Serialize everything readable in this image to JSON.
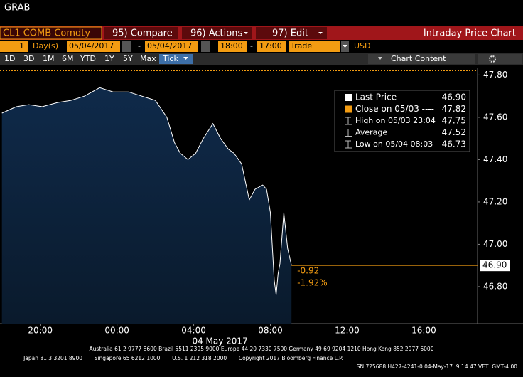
{
  "ui": {
    "title": "GRAB",
    "ticker": "CL1 COMB Comdty",
    "menu": [
      "95) Compare",
      "96) Actions",
      "97) Edit"
    ],
    "page_title": "Intraday Price Chart",
    "range": {
      "count": "1",
      "unit": "Day(s)",
      "start": "05/04/2017",
      "sep": "-",
      "end": "05/04/2017",
      "time_start": "18:00",
      "time_end": "17:00",
      "field": "Trade",
      "currency": "USD"
    },
    "periods": [
      "1D",
      "3D",
      "1M",
      "6M",
      "YTD",
      "1Y",
      "5Y",
      "Max",
      "Tick"
    ],
    "chart_content": "Chart Content",
    "footer": [
      "Australia 61 2 9777 8600 Brazil 5511 2395 9000 Europe 44 20 7330 7500 Germany 49 69 9204 1210 Hong Kong 852 2977 6000",
      "Japan 81 3 3201 8900       Singapore 65 6212 1000       U.S. 1 212 318 2000       Copyright 2017 Bloomberg Finance L.P.",
      "SN 725688 H427-4241-0 04-May-17  9:14:47 VET  GMT-4:00"
    ]
  },
  "chart_data": {
    "type": "area",
    "x": [
      0.0,
      0.75,
      1.4,
      2.1,
      2.9,
      3.6,
      4.3,
      5.1,
      5.8,
      6.6,
      7.3,
      8.0,
      8.6,
      9.0,
      9.3,
      9.7,
      10.1,
      10.5,
      11.0,
      11.4,
      11.8,
      12.1,
      12.5,
      12.9,
      13.2,
      13.6,
      13.8,
      14.0,
      14.2,
      14.3,
      14.4,
      14.5,
      14.7,
      14.9,
      15.1
    ],
    "series": [
      {
        "name": "Last Price",
        "color": "#ffffff",
        "fill": "#0f2a4a",
        "values": [
          47.62,
          47.65,
          47.66,
          47.65,
          47.67,
          47.68,
          47.7,
          47.74,
          47.72,
          47.72,
          47.7,
          47.68,
          47.6,
          47.48,
          47.43,
          47.4,
          47.43,
          47.5,
          47.57,
          47.5,
          47.45,
          47.43,
          47.38,
          47.21,
          47.26,
          47.28,
          47.26,
          47.15,
          46.83,
          46.76,
          46.86,
          46.91,
          47.15,
          46.98,
          46.9
        ]
      }
    ],
    "xlim": [
      -0.1,
      24.8
    ],
    "ylim": [
      46.625,
      47.835
    ],
    "xticks": [
      {
        "value": 2,
        "label": "20:00"
      },
      {
        "value": 6,
        "label": "00:00"
      },
      {
        "value": 10,
        "label": "04:00"
      },
      {
        "value": 14,
        "label": "08:00"
      },
      {
        "value": 18,
        "label": "12:00"
      },
      {
        "value": 22,
        "label": "16:00"
      }
    ],
    "yticks": [
      {
        "value": 46.8,
        "label": "46.80"
      },
      {
        "value": 47.0,
        "label": "47.00"
      },
      {
        "value": 47.2,
        "label": "47.20"
      },
      {
        "value": 47.4,
        "label": "47.40"
      },
      {
        "value": 47.6,
        "label": "47.60"
      },
      {
        "value": 47.8,
        "label": "47.80"
      }
    ],
    "date_label": "04 May 2017",
    "close": {
      "value": 47.82,
      "color": "#f39c12"
    },
    "last_price": {
      "value": 46.9,
      "label": "46.90",
      "color": "#f39c12"
    },
    "change": [
      "-0.92",
      "-1.92%"
    ],
    "legend": [
      {
        "label": "Last Price",
        "value": "46.90"
      },
      {
        "label": "Close on 05/03 ----",
        "value": "47.82"
      },
      {
        "label": "High on 05/03 23:04",
        "value": "47.75"
      },
      {
        "label": "Average",
        "value": "47.52"
      },
      {
        "label": "Low on 05/04 08:03",
        "value": "46.73"
      }
    ]
  }
}
